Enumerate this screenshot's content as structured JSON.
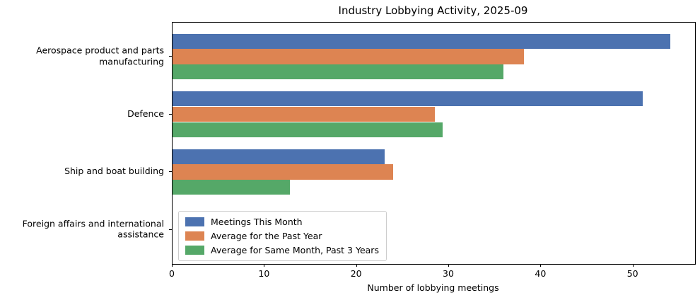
{
  "title": "Industry Lobbying Activity, 2025-09",
  "chart_data": {
    "type": "bar",
    "orientation": "horizontal",
    "title": "Industry Lobbying Activity, 2025-09",
    "xlabel": "Number of lobbying meetings",
    "ylabel": "",
    "xlim": [
      0,
      56.7
    ],
    "xticks": [
      0,
      10,
      20,
      30,
      40,
      50
    ],
    "grid": false,
    "legend_position": "lower left",
    "categories": [
      "Aerospace product and parts manufacturing",
      "Defence",
      "Ship and boat building",
      "Foreign affairs and international assistance"
    ],
    "series": [
      {
        "name": "Meetings This Month",
        "color": "#4c72b0",
        "values": [
          54,
          51,
          23,
          0
        ]
      },
      {
        "name": "Average for the Past Year",
        "color": "#dd8452",
        "values": [
          38.1,
          28.5,
          23.9,
          0
        ]
      },
      {
        "name": "Average for Same Month, Past 3 Years",
        "color": "#55a868",
        "values": [
          35.9,
          29.3,
          12.7,
          0
        ]
      }
    ]
  }
}
